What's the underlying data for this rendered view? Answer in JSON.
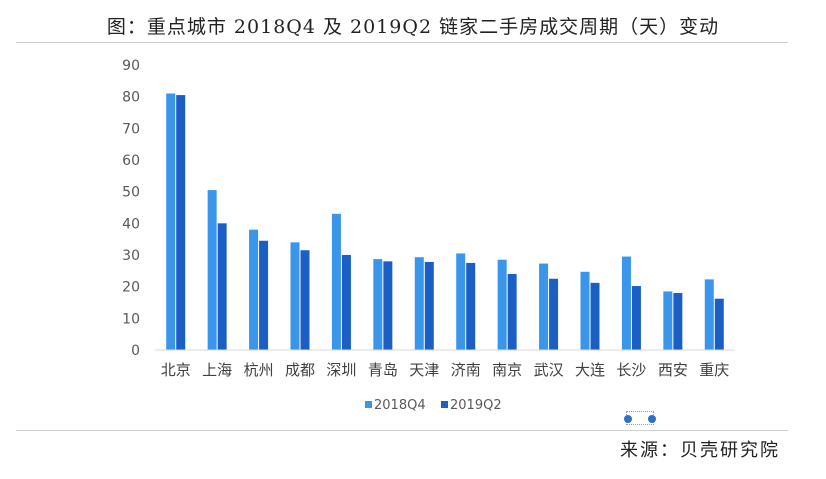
{
  "header": {
    "title": "图：重点城市 2018Q4 及 2019Q2 链家二手房成交周期（天）变动"
  },
  "footer": {
    "source": "来源：贝壳研究院"
  },
  "colors": {
    "series_1": "#3a96eb",
    "series_2": "#1c5fc4",
    "axis": "#d9d9d9"
  },
  "chart_data": {
    "type": "bar",
    "title": "",
    "xlabel": "",
    "ylabel": "",
    "ylim": [
      0,
      90
    ],
    "yticks": [
      0,
      10,
      20,
      30,
      40,
      50,
      60,
      70,
      80,
      90
    ],
    "grid": false,
    "legend_position": "bottom",
    "categories": [
      "北京",
      "上海",
      "杭州",
      "成都",
      "深圳",
      "青岛",
      "天津",
      "济南",
      "南京",
      "武汉",
      "大连",
      "长沙",
      "西安",
      "重庆"
    ],
    "series": [
      {
        "name": "2018Q4",
        "values": [
          81,
          50.5,
          38,
          34,
          43,
          28.7,
          29.3,
          30.5,
          28.5,
          27.3,
          24.7,
          29.5,
          18.5,
          22.3
        ]
      },
      {
        "name": "2019Q2",
        "values": [
          80.5,
          40,
          34.5,
          31.5,
          30,
          28,
          27.8,
          27.5,
          24,
          22.5,
          21.2,
          20.2,
          18,
          16.2
        ]
      }
    ]
  }
}
